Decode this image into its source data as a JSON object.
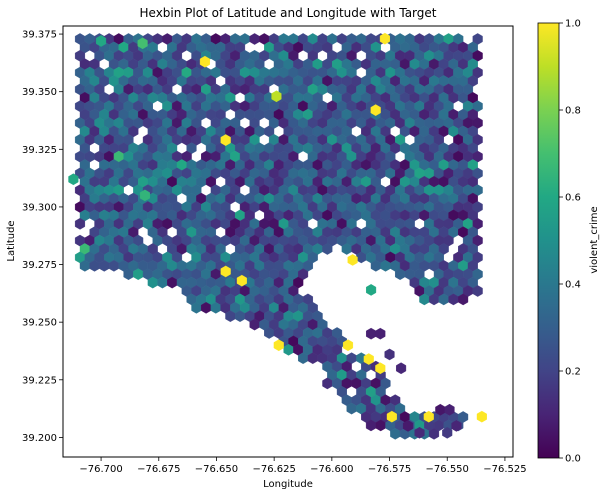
{
  "chart_data": {
    "type": "hexbin",
    "title": "Hexbin Plot of Latitude and Longitude with Target",
    "xlabel": "Longitude",
    "ylabel": "Latitude",
    "colorbar_label": "violent_crime",
    "colormap": "viridis",
    "color_range": [
      0.0,
      1.0
    ],
    "xlim": [
      -76.7165,
      -76.5215
    ],
    "ylim": [
      39.1915,
      39.3785
    ],
    "x_ticks": [
      -76.7,
      -76.675,
      -76.65,
      -76.625,
      -76.6,
      -76.575,
      -76.55,
      -76.525
    ],
    "x_tick_labels": [
      "−76.700",
      "−76.675",
      "−76.650",
      "−76.625",
      "−76.600",
      "−76.575",
      "−76.550",
      "−76.525"
    ],
    "y_ticks": [
      39.2,
      39.225,
      39.25,
      39.275,
      39.3,
      39.325,
      39.35,
      39.375
    ],
    "y_tick_labels": [
      "39.200",
      "39.225",
      "39.250",
      "39.275",
      "39.300",
      "39.325",
      "39.350",
      "39.375"
    ],
    "colorbar_ticks": [
      0.0,
      0.2,
      0.4,
      0.6,
      0.8,
      1.0
    ],
    "colorbar_tick_labels": [
      "0.0",
      "0.2",
      "0.4",
      "0.6",
      "0.8",
      "1.0"
    ],
    "grid": false,
    "gridsize": 50,
    "notable_cells": [
      {
        "x": -76.577,
        "y": 39.373,
        "value": 1.0
      },
      {
        "x": -76.655,
        "y": 39.363,
        "value": 1.0
      },
      {
        "x": -76.581,
        "y": 39.342,
        "value": 1.0
      },
      {
        "x": -76.646,
        "y": 39.329,
        "value": 1.0
      },
      {
        "x": -76.591,
        "y": 39.277,
        "value": 1.0
      },
      {
        "x": -76.646,
        "y": 39.272,
        "value": 1.0
      },
      {
        "x": -76.639,
        "y": 39.268,
        "value": 1.0
      },
      {
        "x": -76.623,
        "y": 39.24,
        "value": 1.0
      },
      {
        "x": -76.593,
        "y": 39.24,
        "value": 1.0
      },
      {
        "x": -76.584,
        "y": 39.234,
        "value": 1.0
      },
      {
        "x": -76.579,
        "y": 39.23,
        "value": 1.0
      },
      {
        "x": -76.574,
        "y": 39.209,
        "value": 1.0
      },
      {
        "x": -76.558,
        "y": 39.209,
        "value": 1.0
      },
      {
        "x": -76.535,
        "y": 39.209,
        "value": 1.0
      },
      {
        "x": -76.624,
        "y": 39.348,
        "value": 0.9
      },
      {
        "x": -76.7,
        "y": 39.372,
        "value": 0.6
      },
      {
        "x": -76.682,
        "y": 39.371,
        "value": 0.7
      },
      {
        "x": -76.712,
        "y": 39.312,
        "value": 0.6
      },
      {
        "x": -76.681,
        "y": 39.305,
        "value": 0.65
      },
      {
        "x": -76.583,
        "y": 39.264,
        "value": 0.6
      }
    ]
  }
}
